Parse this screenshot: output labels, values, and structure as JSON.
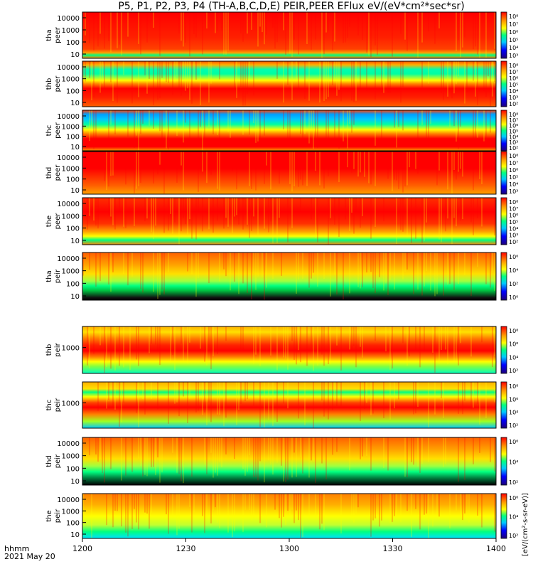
{
  "title": "P5, P1, P2, P3, P4 (TH-A,B,C,D,E) PEIR,PEER EFlux eV/(eV*cm²*sec*sr)",
  "footer": {
    "time_label": "hhmm",
    "date": "2021 May 20"
  },
  "colorbar_unit": "[eV/(cm²-s-sr-eV)]",
  "chart_data": {
    "type": "heatmap",
    "xlabel": "",
    "x_ticks": [
      "1200",
      "1230",
      "1300",
      "1330",
      "1400"
    ],
    "xlim_minutes": [
      0,
      120
    ],
    "colormap": [
      "#1e0078",
      "#0000ff",
      "#00c8ff",
      "#00ff80",
      "#ffff00",
      "#ffa000",
      "#ff0000"
    ],
    "panels": [
      {
        "probe": "tha",
        "species": "peer",
        "yticks": [
          "10000",
          "1000",
          "100",
          "10"
        ],
        "cbar_ticks": [
          "10⁸",
          "10⁷",
          "10⁶",
          "10⁵",
          "10⁴",
          "10³"
        ]
      },
      {
        "probe": "thb",
        "species": "peer",
        "yticks": [
          "10000",
          "1000",
          "100",
          "10"
        ],
        "cbar_ticks": [
          "10⁸",
          "10⁷",
          "10⁶",
          "10⁵",
          "10⁴",
          "10³",
          "10²"
        ]
      },
      {
        "probe": "thc",
        "species": "peer",
        "yticks": [
          "10000",
          "1000",
          "100",
          "10"
        ],
        "cbar_ticks": [
          "10⁸",
          "10⁷",
          "10⁶",
          "10⁵",
          "10⁴",
          "10³",
          "10²"
        ]
      },
      {
        "probe": "thd",
        "species": "peer",
        "yticks": [
          "10000",
          "1000",
          "100",
          "10"
        ],
        "cbar_ticks": [
          "10⁸",
          "10⁷",
          "10⁶",
          "10⁵",
          "10⁴",
          "10³"
        ]
      },
      {
        "probe": "the",
        "species": "peer",
        "yticks": [
          "10000",
          "1000",
          "100",
          "10"
        ],
        "cbar_ticks": [
          "10⁸",
          "10⁷",
          "10⁶",
          "10⁵",
          "10⁴",
          "10³",
          "10²"
        ]
      },
      {
        "probe": "tha",
        "species": "peir",
        "yticks": [
          "10000",
          "1000",
          "100",
          "10"
        ],
        "cbar_ticks": [
          "10⁶",
          "10⁴",
          "10²",
          "10⁰"
        ]
      },
      {
        "probe": "thb",
        "species": "peir",
        "yticks": [
          "1000"
        ],
        "cbar_ticks": [
          "10⁸",
          "10⁶",
          "10⁴",
          "10²"
        ]
      },
      {
        "probe": "thc",
        "species": "peir",
        "yticks": [
          "1000"
        ],
        "cbar_ticks": [
          "10⁸",
          "10⁶",
          "10⁴",
          "10²"
        ]
      },
      {
        "probe": "thd",
        "species": "peir",
        "yticks": [
          "10000",
          "1000",
          "100",
          "10"
        ],
        "cbar_ticks": [
          "10⁶",
          "10⁴",
          "10²"
        ]
      },
      {
        "probe": "the",
        "species": "peir",
        "yticks": [
          "10000",
          "1000",
          "100",
          "10"
        ],
        "cbar_ticks": [
          "10⁶",
          "10⁴",
          "10²"
        ]
      }
    ]
  }
}
